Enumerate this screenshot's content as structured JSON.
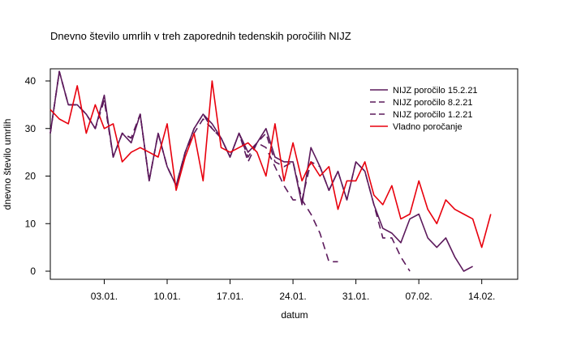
{
  "chart_data": {
    "type": "line",
    "title": "Dnevno število umrlih v treh zaporednih tedenskih poročilih NIJZ",
    "xlabel": "datum",
    "ylabel": "dnevno število umrlih",
    "x_start": "2020-12-28",
    "xlim": [
      "2020-12-28",
      "2021-02-18"
    ],
    "ylim": [
      0,
      42
    ],
    "y_ticks": [
      0,
      10,
      20,
      30,
      40
    ],
    "x_ticks": [
      {
        "date": "2021-01-03",
        "label": "03.01."
      },
      {
        "date": "2021-01-10",
        "label": "10.01."
      },
      {
        "date": "2021-01-17",
        "label": "17.01."
      },
      {
        "date": "2021-01-24",
        "label": "24.01."
      },
      {
        "date": "2021-01-31",
        "label": "31.01."
      },
      {
        "date": "2021-02-07",
        "label": "07.02."
      },
      {
        "date": "2021-02-14",
        "label": "14.02."
      }
    ],
    "legend": "top-right",
    "grid": false,
    "series": [
      {
        "name": "NIJZ poročilo 15.2.21",
        "color": "#5c1a5c",
        "dash": "solid",
        "values": [
          29,
          42,
          35,
          35,
          33,
          30,
          37,
          24,
          29,
          27,
          33,
          19,
          29,
          22,
          18,
          25,
          30,
          33,
          31,
          28,
          24,
          29,
          25,
          27,
          30,
          24,
          23,
          23,
          14,
          26,
          22,
          17,
          21,
          15,
          23,
          21,
          14,
          9,
          8,
          6,
          11,
          12,
          7,
          5,
          7,
          3,
          0,
          1
        ]
      },
      {
        "name": "NIJZ poročilo 8.2.21",
        "color": "#5c1a5c",
        "dash": "dashed",
        "values": [
          29,
          42,
          35,
          35,
          33,
          30,
          36,
          24,
          29,
          28,
          33,
          19,
          29,
          22,
          18,
          25,
          30,
          33,
          30,
          28,
          24,
          29,
          24,
          27,
          29,
          23,
          22,
          23,
          15,
          23,
          22,
          17,
          21,
          15,
          23,
          21,
          14,
          7,
          7,
          3,
          0
        ]
      },
      {
        "name": "NIJZ poročilo 1.2.21",
        "color": "#5c1a5c",
        "dash": "dashed",
        "values": [
          29,
          42,
          35,
          35,
          33,
          30,
          36,
          24,
          29,
          28,
          33,
          19,
          29,
          22,
          18,
          25,
          29,
          32,
          30,
          28,
          24,
          29,
          23,
          27,
          26,
          22,
          18,
          15,
          15,
          12,
          8,
          2,
          2
        ]
      },
      {
        "name": "Vladno poročanje",
        "color": "#e8000d",
        "dash": "solid",
        "values": [
          34,
          32,
          31,
          39,
          29,
          35,
          30,
          31,
          23,
          25,
          26,
          25,
          24,
          31,
          17,
          24,
          29,
          19,
          40,
          26,
          25,
          26,
          27,
          25,
          20,
          31,
          19,
          27,
          19,
          23,
          20,
          22,
          13,
          19,
          19,
          23,
          16,
          14,
          18,
          11,
          12,
          19,
          13,
          10,
          15,
          13,
          12,
          11,
          5,
          12
        ]
      }
    ]
  }
}
